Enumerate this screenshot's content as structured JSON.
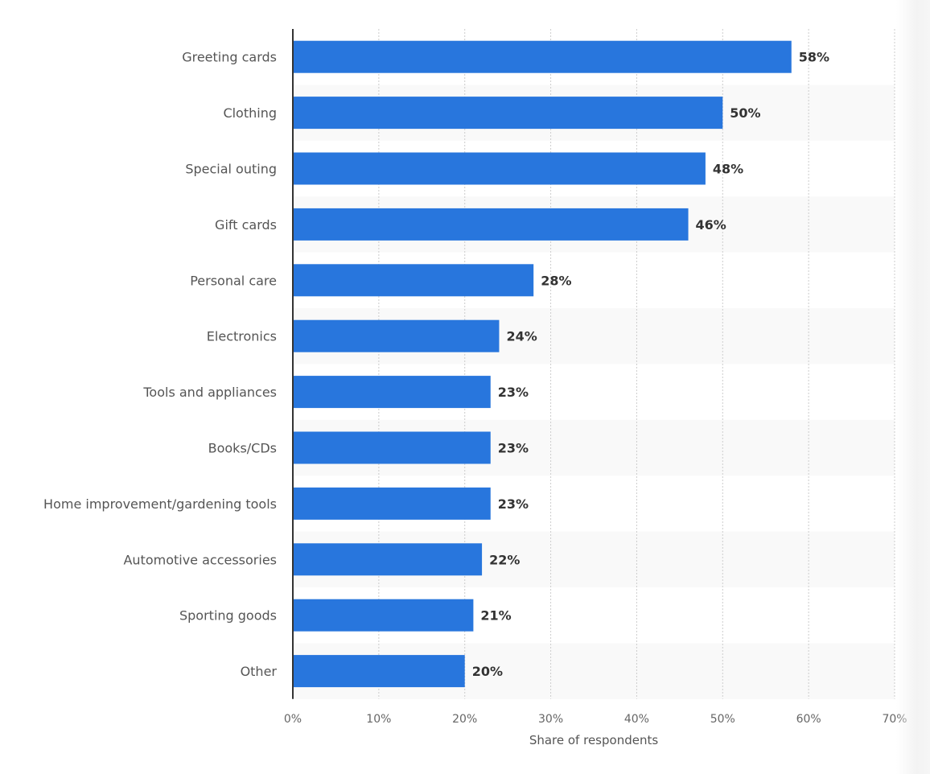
{
  "chart_data": {
    "type": "bar",
    "orientation": "horizontal",
    "categories": [
      "Greeting cards",
      "Clothing",
      "Special outing",
      "Gift cards",
      "Personal care",
      "Electronics",
      "Tools and appliances",
      "Books/CDs",
      "Home improvement/gardening tools",
      "Automotive accessories",
      "Sporting goods",
      "Other"
    ],
    "values": [
      58,
      50,
      48,
      46,
      28,
      24,
      23,
      23,
      23,
      22,
      21,
      20
    ],
    "value_labels": [
      "58%",
      "50%",
      "48%",
      "46%",
      "28%",
      "24%",
      "23%",
      "23%",
      "23%",
      "22%",
      "21%",
      "20%"
    ],
    "xlabel": "Share of respondents",
    "ylabel": "",
    "xlim": [
      0,
      70
    ],
    "x_ticks": [
      0,
      10,
      20,
      30,
      40,
      50,
      60,
      70
    ],
    "x_tick_labels": [
      "0%",
      "10%",
      "20%",
      "30%",
      "40%",
      "50%",
      "60%",
      "70%"
    ],
    "grid": "vertical dotted",
    "alternating_row_shading": true,
    "bar_color": "#2876dd",
    "row_shade_color": "#f9f9f9",
    "grid_color": "#cccccc",
    "axis_color": "#333333"
  }
}
